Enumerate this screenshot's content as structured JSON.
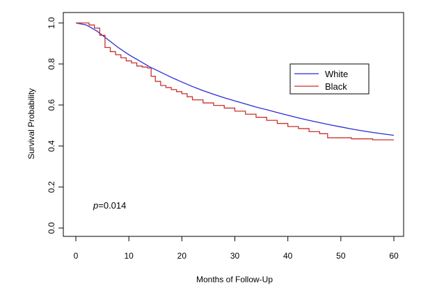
{
  "chart_data": {
    "type": "line",
    "xlabel": "Months of Follow-Up",
    "ylabel": "Survival Probability",
    "xlim": [
      0,
      60
    ],
    "ylim": [
      0,
      1
    ],
    "xticks": [
      0,
      10,
      20,
      30,
      40,
      50,
      60
    ],
    "yticks": [
      0.0,
      0.2,
      0.4,
      0.6,
      0.8,
      1.0
    ],
    "ytick_labels": [
      "0.0",
      "0.2",
      "0.4",
      "0.6",
      "0.8",
      "1.0"
    ],
    "grid": false,
    "legend_position": "top-right",
    "annotation": {
      "italic": "p",
      "rest": "=0.014"
    },
    "series": [
      {
        "name": "White",
        "color": "#2a2ad6",
        "x": [
          0,
          2,
          4,
          6,
          8,
          10,
          12,
          14,
          16,
          18,
          20,
          22,
          24,
          26,
          28,
          30,
          32,
          34,
          36,
          38,
          40,
          42,
          44,
          46,
          48,
          50,
          52,
          54,
          56,
          58,
          60
        ],
        "y": [
          1.0,
          0.99,
          0.96,
          0.92,
          0.88,
          0.845,
          0.815,
          0.785,
          0.76,
          0.735,
          0.712,
          0.69,
          0.67,
          0.652,
          0.635,
          0.62,
          0.605,
          0.59,
          0.577,
          0.563,
          0.55,
          0.537,
          0.525,
          0.514,
          0.503,
          0.493,
          0.483,
          0.474,
          0.466,
          0.459,
          0.452
        ]
      },
      {
        "name": "Black",
        "color": "#c8312f",
        "step": true,
        "x": [
          0,
          1.5,
          2.5,
          3.5,
          4.5,
          5.5,
          6.5,
          7.5,
          8.5,
          9.5,
          10.5,
          11.5,
          12.5,
          13.5,
          14.2,
          15,
          16,
          17,
          18,
          19,
          20,
          21,
          22,
          24,
          26,
          28,
          30,
          32,
          34,
          36,
          38,
          40,
          42,
          44,
          46,
          47.5,
          50,
          52,
          54,
          56,
          58,
          60
        ],
        "y": [
          1.0,
          1.0,
          0.99,
          0.975,
          0.94,
          0.88,
          0.86,
          0.845,
          0.83,
          0.815,
          0.805,
          0.79,
          0.785,
          0.78,
          0.74,
          0.715,
          0.695,
          0.685,
          0.675,
          0.665,
          0.655,
          0.64,
          0.625,
          0.61,
          0.598,
          0.585,
          0.57,
          0.555,
          0.54,
          0.525,
          0.51,
          0.495,
          0.485,
          0.47,
          0.46,
          0.44,
          0.44,
          0.435,
          0.435,
          0.43,
          0.43,
          0.43
        ]
      }
    ]
  }
}
